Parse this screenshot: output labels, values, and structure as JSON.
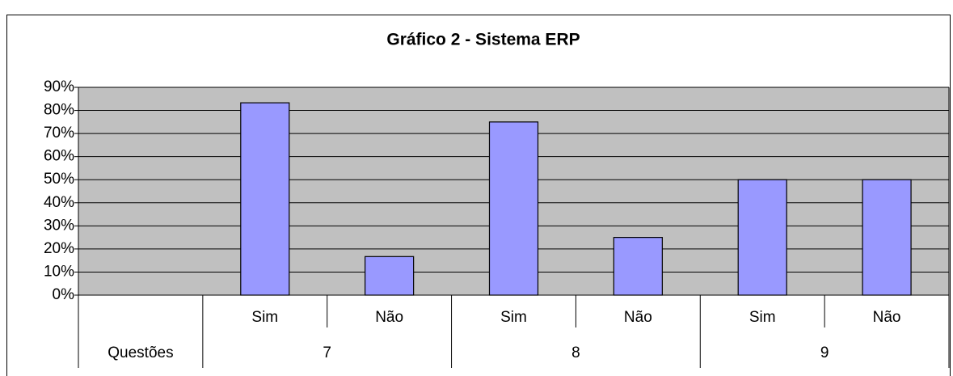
{
  "chart_data": {
    "type": "bar",
    "title": "Gráfico 2 - Sistema ERP",
    "categories": [
      "Sim",
      "Não",
      "Sim",
      "Não",
      "Sim",
      "Não"
    ],
    "values": [
      83.3,
      16.7,
      75,
      25,
      50,
      50
    ],
    "groups": [
      "7",
      "8",
      "9"
    ],
    "group_axis_label": "Questões",
    "color": "#9999ff",
    "plot_background": "#c0c0c0",
    "ylim": [
      0,
      90
    ],
    "yticks": [
      {
        "value": 0,
        "label": "0%"
      },
      {
        "value": 10,
        "label": "10%"
      },
      {
        "value": 20,
        "label": "20%"
      },
      {
        "value": 30,
        "label": "30%"
      },
      {
        "value": 40,
        "label": "40%"
      },
      {
        "value": 50,
        "label": "50%"
      },
      {
        "value": 60,
        "label": "60%"
      },
      {
        "value": 70,
        "label": "70%"
      },
      {
        "value": 80,
        "label": "80%"
      },
      {
        "value": 90,
        "label": "90%"
      }
    ],
    "grid": true
  }
}
